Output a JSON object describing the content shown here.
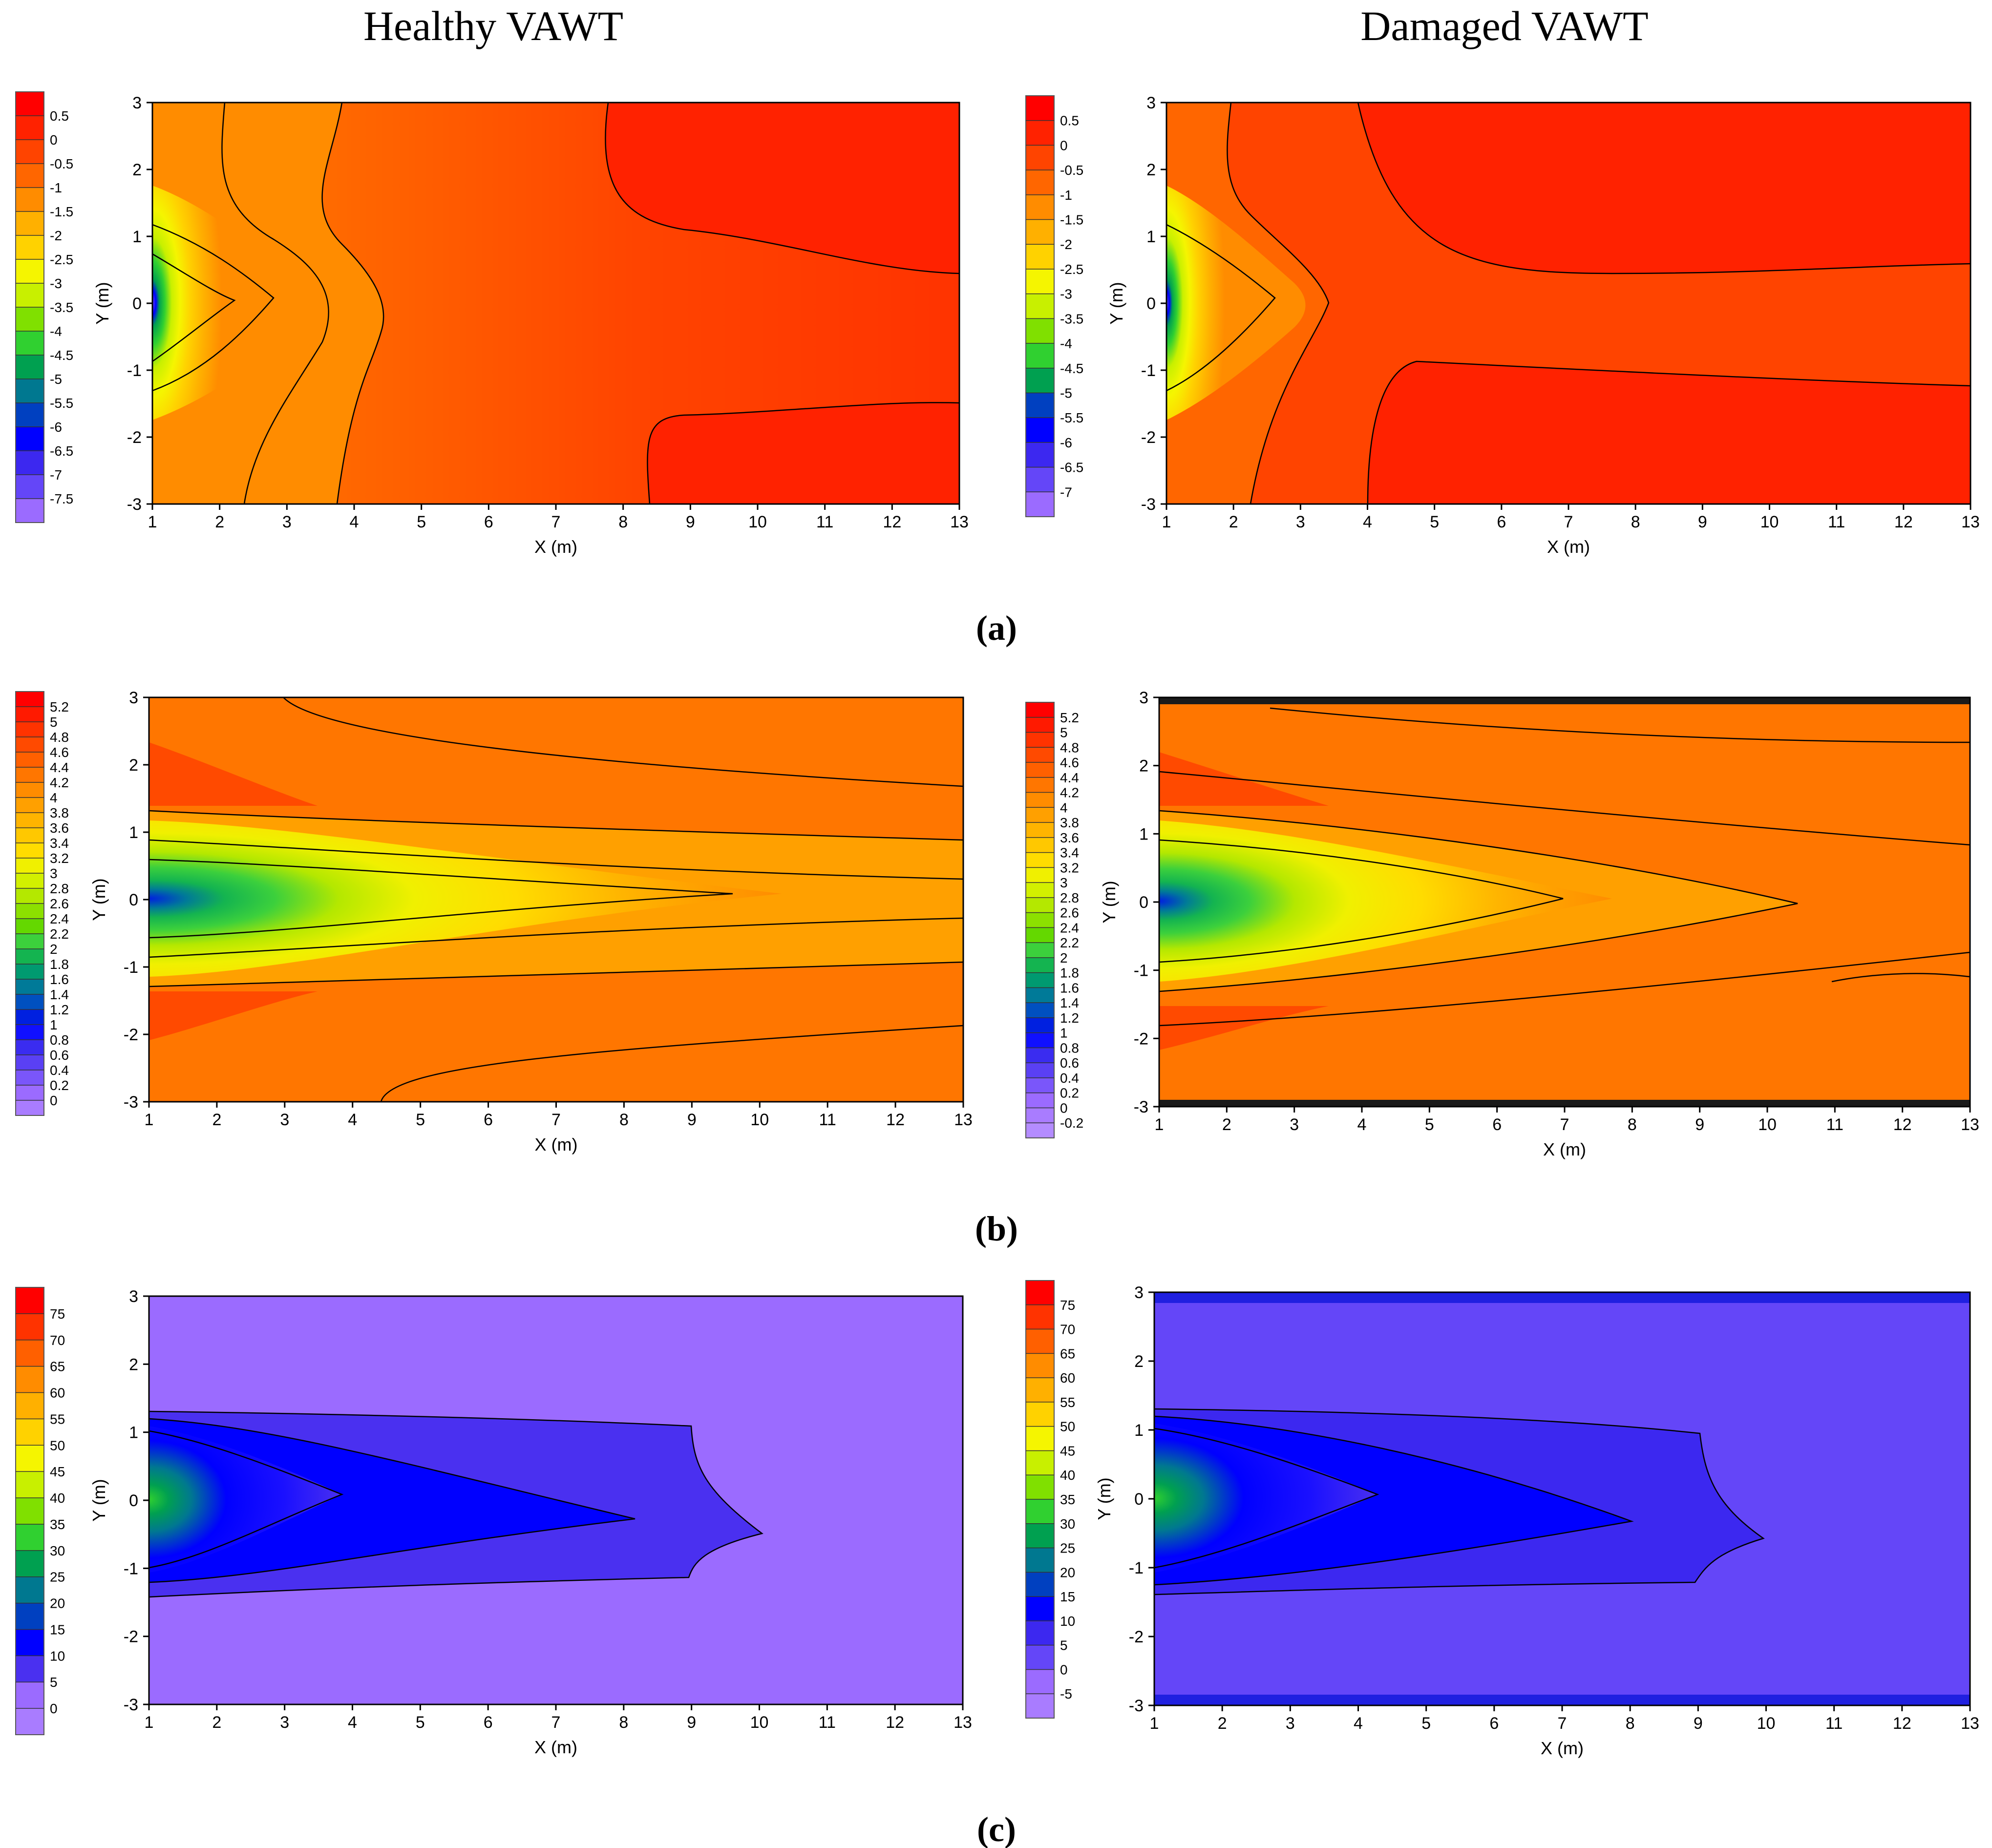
{
  "column_titles": [
    "Healthy VAWT",
    "Damaged VAWT"
  ],
  "panel_labels": [
    "(a)",
    "(b)",
    "(c)"
  ],
  "chart_data": [
    {
      "type": "heatmap",
      "panel": "(a)",
      "column": "Healthy VAWT",
      "xlabel": "X (m)",
      "ylabel": "Y (m)",
      "xlim": [
        1,
        13
      ],
      "ylim": [
        -3,
        3
      ],
      "xticks": [
        "1",
        "2",
        "3",
        "4",
        "5",
        "6",
        "7",
        "8",
        "9",
        "10",
        "11",
        "12",
        "13"
      ],
      "yticks": [
        "-3",
        "-2",
        "-1",
        "0",
        "1",
        "2",
        "3"
      ],
      "colorbar": {
        "ticks": [
          "0.5",
          "0",
          "-0.5",
          "-1",
          "-1.5",
          "-2",
          "-2.5",
          "-3",
          "-3.5",
          "-4",
          "-4.5",
          "-5",
          "-5.5",
          "-6",
          "-6.5",
          "-7",
          "-7.5"
        ],
        "colors": [
          "#ff0000",
          "#ff2200",
          "#ff4400",
          "#ff6600",
          "#ff8c00",
          "#ffb000",
          "#ffd200",
          "#f5f500",
          "#c8f000",
          "#80e000",
          "#30d030",
          "#00a050",
          "#007890",
          "#0040c0",
          "#0000ff",
          "#3c28f0",
          "#6446f8",
          "#9b6bff"
        ]
      }
    },
    {
      "type": "heatmap",
      "panel": "(a)",
      "column": "Damaged VAWT",
      "xlabel": "X (m)",
      "ylabel": "Y (m)",
      "xlim": [
        1,
        13
      ],
      "ylim": [
        -3,
        3
      ],
      "xticks": [
        "1",
        "2",
        "3",
        "4",
        "5",
        "6",
        "7",
        "8",
        "9",
        "10",
        "11",
        "12",
        "13"
      ],
      "yticks": [
        "-3",
        "-2",
        "-1",
        "0",
        "1",
        "2",
        "3"
      ],
      "colorbar": {
        "ticks": [
          "0.5",
          "0",
          "-0.5",
          "-1",
          "-1.5",
          "-2",
          "-2.5",
          "-3",
          "-3.5",
          "-4",
          "-4.5",
          "-5",
          "-5.5",
          "-6",
          "-6.5",
          "-7"
        ],
        "colors": [
          "#ff0000",
          "#ff2200",
          "#ff4400",
          "#ff6600",
          "#ff8c00",
          "#ffb000",
          "#ffd200",
          "#f5f500",
          "#c8f000",
          "#80e000",
          "#30d030",
          "#00a050",
          "#0040c0",
          "#0000ff",
          "#3c28f0",
          "#6446f8",
          "#9b6bff"
        ]
      }
    },
    {
      "type": "heatmap",
      "panel": "(b)",
      "column": "Healthy VAWT",
      "xlabel": "X (m)",
      "ylabel": "Y (m)",
      "xlim": [
        1,
        13
      ],
      "ylim": [
        -3,
        3
      ],
      "xticks": [
        "1",
        "2",
        "3",
        "4",
        "5",
        "6",
        "7",
        "8",
        "9",
        "10",
        "11",
        "12",
        "13"
      ],
      "yticks": [
        "-3",
        "-2",
        "-1",
        "0",
        "1",
        "2",
        "3"
      ],
      "colorbar": {
        "ticks": [
          "5.2",
          "5",
          "4.8",
          "4.6",
          "4.4",
          "4.2",
          "4",
          "3.8",
          "3.6",
          "3.4",
          "3.2",
          "3",
          "2.8",
          "2.6",
          "2.4",
          "2.2",
          "2",
          "1.8",
          "1.6",
          "1.4",
          "1.2",
          "1",
          "0.8",
          "0.6",
          "0.4",
          "0.2",
          "0"
        ],
        "colors": [
          "#ff0000",
          "#ff1a00",
          "#ff3300",
          "#ff4a00",
          "#ff6000",
          "#ff7600",
          "#ff8c00",
          "#ffa000",
          "#ffb400",
          "#ffc800",
          "#ffdc00",
          "#f0f000",
          "#d2f000",
          "#b4e800",
          "#8ce000",
          "#64d800",
          "#3cd03c",
          "#14b450",
          "#009a70",
          "#007a98",
          "#0050c0",
          "#0020e0",
          "#1010ff",
          "#3a2cf0",
          "#5a40f4",
          "#7a56fa",
          "#9b6bff",
          "#a97cff"
        ]
      }
    },
    {
      "type": "heatmap",
      "panel": "(b)",
      "column": "Damaged VAWT",
      "xlabel": "X (m)",
      "ylabel": "Y (m)",
      "xlim": [
        1,
        13
      ],
      "ylim": [
        -3,
        3
      ],
      "xticks": [
        "1",
        "2",
        "3",
        "4",
        "5",
        "6",
        "7",
        "8",
        "9",
        "10",
        "11",
        "12",
        "13"
      ],
      "yticks": [
        "-3",
        "-2",
        "-1",
        "0",
        "1",
        "2",
        "3"
      ],
      "colorbar": {
        "ticks": [
          "5.2",
          "5",
          "4.8",
          "4.6",
          "4.4",
          "4.2",
          "4",
          "3.8",
          "3.6",
          "3.4",
          "3.2",
          "3",
          "2.8",
          "2.6",
          "2.4",
          "2.2",
          "2",
          "1.8",
          "1.6",
          "1.4",
          "1.2",
          "1",
          "0.8",
          "0.6",
          "0.4",
          "0.2",
          "0",
          "-0.2"
        ],
        "colors": [
          "#ff0000",
          "#ff1a00",
          "#ff3300",
          "#ff4a00",
          "#ff6000",
          "#ff7600",
          "#ff8c00",
          "#ffa000",
          "#ffb400",
          "#ffc800",
          "#ffdc00",
          "#f0f000",
          "#d2f000",
          "#b4e800",
          "#8ce000",
          "#64d800",
          "#3cd03c",
          "#14b450",
          "#009a70",
          "#007a98",
          "#0050c0",
          "#0020e0",
          "#1010ff",
          "#3a2cf0",
          "#5a40f4",
          "#7a56fa",
          "#9b6bff",
          "#a97cff",
          "#b48cff"
        ]
      }
    },
    {
      "type": "heatmap",
      "panel": "(c)",
      "column": "Healthy VAWT",
      "xlabel": "X (m)",
      "ylabel": "Y (m)",
      "xlim": [
        1,
        13
      ],
      "ylim": [
        -3,
        3
      ],
      "xticks": [
        "1",
        "2",
        "3",
        "4",
        "5",
        "6",
        "7",
        "8",
        "9",
        "10",
        "11",
        "12",
        "13"
      ],
      "yticks": [
        "-3",
        "-2",
        "-1",
        "0",
        "1",
        "2",
        "3"
      ],
      "colorbar": {
        "ticks": [
          "75",
          "70",
          "65",
          "60",
          "55",
          "50",
          "45",
          "40",
          "35",
          "30",
          "25",
          "20",
          "15",
          "10",
          "5",
          "0"
        ],
        "colors": [
          "#ff0000",
          "#ff3300",
          "#ff6000",
          "#ff8c00",
          "#ffb000",
          "#ffd200",
          "#f5f500",
          "#c8f000",
          "#80e000",
          "#30d030",
          "#00a050",
          "#007890",
          "#0040c0",
          "#0000ff",
          "#4a30f0",
          "#9b6bff",
          "#a97cff"
        ]
      }
    },
    {
      "type": "heatmap",
      "panel": "(c)",
      "column": "Damaged VAWT",
      "xlabel": "X (m)",
      "ylabel": "Y (m)",
      "xlim": [
        1,
        13
      ],
      "ylim": [
        -3,
        3
      ],
      "xticks": [
        "1",
        "2",
        "3",
        "4",
        "5",
        "6",
        "7",
        "8",
        "9",
        "10",
        "11",
        "12",
        "13"
      ],
      "yticks": [
        "-3",
        "-2",
        "-1",
        "0",
        "1",
        "2",
        "3"
      ],
      "colorbar": {
        "ticks": [
          "75",
          "70",
          "65",
          "60",
          "55",
          "50",
          "45",
          "40",
          "35",
          "30",
          "25",
          "20",
          "15",
          "10",
          "5",
          "0",
          "-5"
        ],
        "colors": [
          "#ff0000",
          "#ff3300",
          "#ff6000",
          "#ff8c00",
          "#ffb000",
          "#ffd200",
          "#f5f500",
          "#c8f000",
          "#80e000",
          "#30d030",
          "#00a050",
          "#007890",
          "#0040c0",
          "#0000ff",
          "#3c28f0",
          "#6446f8",
          "#9b6bff",
          "#a97cff"
        ]
      }
    }
  ]
}
